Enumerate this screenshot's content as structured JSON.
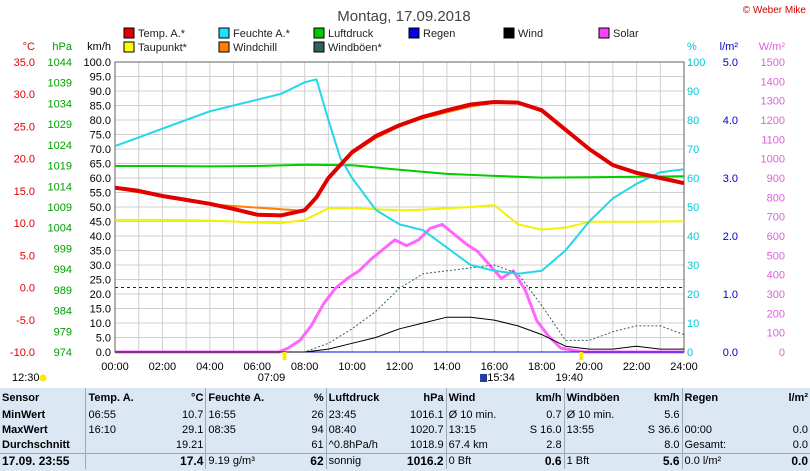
{
  "title": "Montag, 17.09.2018",
  "copyright": "© Weber Mike",
  "axes": {
    "temp": {
      "unit": "°C",
      "color": "#e00000",
      "ticks": [
        "35.0",
        "30.0",
        "25.0",
        "20.0",
        "15.0",
        "10.0",
        "5.0",
        "0.0",
        "-5.0",
        "-10.0"
      ],
      "min": -10,
      "max": 35
    },
    "pressure": {
      "unit": "hPa",
      "color": "#00a000",
      "ticks": [
        "1044",
        "1039",
        "1034",
        "1029",
        "1024",
        "1019",
        "1014",
        "1009",
        "1004",
        "999",
        "994",
        "989",
        "984",
        "979",
        "974"
      ],
      "min": 974,
      "max": 1044
    },
    "wind": {
      "unit": "km/h",
      "color": "#000000",
      "ticks": [
        "100.0",
        "95.0",
        "90.0",
        "85.0",
        "80.0",
        "75.0",
        "70.0",
        "65.0",
        "60.0",
        "55.0",
        "50.0",
        "45.0",
        "40.0",
        "35.0",
        "30.0",
        "25.0",
        "20.0",
        "15.0",
        "10.0",
        "5.0",
        "0.0"
      ],
      "min": 0,
      "max": 100
    },
    "humidity": {
      "unit": "%",
      "color": "#00c8d8",
      "ticks": [
        "100",
        "90",
        "80",
        "70",
        "60",
        "50",
        "40",
        "30",
        "20",
        "10",
        "0"
      ],
      "min": 0,
      "max": 100
    },
    "rain": {
      "unit": "l/m²",
      "color": "#0000c8",
      "ticks": [
        "5.0",
        "4.0",
        "3.0",
        "2.0",
        "1.0",
        "0.0"
      ],
      "min": 0,
      "max": 5
    },
    "solar": {
      "unit": "W/m²",
      "color": "#e060e0",
      "ticks": [
        "1500",
        "1400",
        "1300",
        "1200",
        "1100",
        "1000",
        "900",
        "800",
        "700",
        "600",
        "500",
        "400",
        "300",
        "200",
        "100",
        "0"
      ],
      "min": 0,
      "max": 1500
    },
    "x_ticks": [
      "00:00",
      "02:00",
      "04:00",
      "06:00",
      "08:00",
      "10:00",
      "12:00",
      "14:00",
      "16:00",
      "18:00",
      "20:00",
      "22:00",
      "24:00"
    ]
  },
  "legend": [
    {
      "label": "Temp. A.*",
      "color": "#e00000"
    },
    {
      "label": "Feuchte A.*",
      "color": "#20e0ff"
    },
    {
      "label": "Luftdruck",
      "color": "#00c800"
    },
    {
      "label": "Regen",
      "color": "#0000e0"
    },
    {
      "label": "Wind",
      "color": "#000000"
    },
    {
      "label": "Solar",
      "color": "#ff40ff"
    },
    {
      "label": "Taupunkt*",
      "color": "#ffff00"
    },
    {
      "label": "Windchill",
      "color": "#ff8000"
    },
    {
      "label": "Windböen*",
      "color": "#306060"
    }
  ],
  "events": {
    "sunrise": "07:09",
    "sunset": "19:40",
    "moonrise": "12:30",
    "midday": "15:34"
  },
  "chart_data": {
    "type": "line",
    "x_unit": "hour",
    "xlim": [
      0,
      24
    ],
    "series": [
      {
        "name": "Temp. A.*",
        "axis": "temp",
        "x": [
          0,
          1,
          2,
          3,
          4,
          5,
          6,
          7,
          8,
          8.5,
          9,
          10,
          11,
          12,
          13,
          14,
          15,
          16,
          17,
          18,
          19,
          20,
          21,
          22,
          23,
          24
        ],
        "y": [
          15.5,
          15.0,
          14.2,
          13.6,
          13.0,
          12.2,
          11.3,
          11.2,
          12.0,
          14.0,
          17.0,
          21.0,
          23.5,
          25.2,
          26.5,
          27.5,
          28.4,
          28.8,
          28.7,
          27.5,
          24.5,
          21.5,
          19.0,
          17.8,
          17.0,
          16.2
        ]
      },
      {
        "name": "Feuchte A.*",
        "axis": "humidity",
        "x": [
          0,
          1,
          2,
          3,
          4,
          5,
          6,
          7,
          7.5,
          8,
          8.5,
          9,
          9.5,
          10,
          11,
          12,
          13,
          14,
          15,
          16,
          17,
          18,
          19,
          20,
          21,
          22,
          23,
          24
        ],
        "y": [
          71,
          74,
          77,
          80,
          83,
          85,
          87,
          89,
          91,
          93,
          94,
          80,
          67,
          60,
          49,
          44,
          42,
          36,
          30,
          28,
          27,
          28,
          35,
          45,
          53,
          58,
          62,
          63
        ]
      },
      {
        "name": "Luftdruck",
        "axis": "pressure",
        "x": [
          0,
          2,
          4,
          6,
          8,
          10,
          12,
          14,
          16,
          18,
          20,
          22,
          24
        ],
        "y": [
          1018.9,
          1018.9,
          1018.8,
          1018.9,
          1019.2,
          1019.1,
          1018.0,
          1017.0,
          1016.5,
          1016.1,
          1016.2,
          1016.3,
          1016.4
        ]
      },
      {
        "name": "Taupunkt*",
        "axis": "temp",
        "x": [
          0,
          2,
          4,
          6,
          7,
          8,
          9,
          10,
          12,
          13,
          14,
          15,
          16,
          17,
          18,
          19,
          20,
          22,
          24
        ],
        "y": [
          10.5,
          10.5,
          10.4,
          10.1,
          10.0,
          10.5,
          12.3,
          12.3,
          12.0,
          12.1,
          12.3,
          12.5,
          12.8,
          9.8,
          9.0,
          9.3,
          10.2,
          10.2,
          10.3
        ]
      },
      {
        "name": "Windchill",
        "axis": "temp",
        "x": [
          0,
          4,
          8,
          8.5,
          9,
          10,
          11,
          12,
          13,
          14,
          15,
          16,
          17,
          18,
          19,
          20,
          21,
          22,
          24
        ],
        "y": [
          15.4,
          12.9,
          11.9,
          13.8,
          16.8,
          20.8,
          23.2,
          25.0,
          26.3,
          27.2,
          28.1,
          28.7,
          28.6,
          27.3,
          24.3,
          21.4,
          18.9,
          17.7,
          16.1
        ]
      },
      {
        "name": "Wind",
        "axis": "wind",
        "x": [
          0,
          8,
          9,
          10,
          11,
          12,
          13,
          14,
          15,
          16,
          17,
          18,
          19,
          20,
          21,
          22,
          23,
          24
        ],
        "y": [
          0,
          0,
          1,
          3,
          5,
          8,
          10,
          12,
          12,
          11,
          9,
          6,
          2,
          1,
          1,
          2,
          1,
          1
        ]
      },
      {
        "name": "Windböen*",
        "axis": "wind",
        "x": [
          0,
          8,
          9,
          10,
          11,
          12,
          13,
          14,
          15,
          16,
          17,
          18,
          19,
          20,
          21,
          22,
          23,
          24
        ],
        "y": [
          0,
          0,
          3,
          8,
          14,
          22,
          27,
          28,
          29,
          30,
          27,
          16,
          4,
          4,
          7,
          9,
          9,
          6
        ]
      },
      {
        "name": "Solar",
        "axis": "solar",
        "x": [
          0,
          6.9,
          7.3,
          7.8,
          8.3,
          8.8,
          9.3,
          9.8,
          10.3,
          10.8,
          11.3,
          11.8,
          12.3,
          12.8,
          13.3,
          13.8,
          14.3,
          14.8,
          15.3,
          15.8,
          16.3,
          16.8,
          17.3,
          17.8,
          18.3,
          18.8,
          19.3,
          19.8,
          24
        ],
        "y": [
          0,
          0,
          20,
          60,
          140,
          250,
          330,
          380,
          420,
          480,
          530,
          580,
          550,
          580,
          640,
          660,
          610,
          560,
          520,
          450,
          380,
          420,
          320,
          160,
          80,
          20,
          10,
          0,
          0
        ]
      },
      {
        "name": "Regen",
        "axis": "rain",
        "x": [
          0,
          24
        ],
        "y": [
          0,
          0
        ]
      }
    ]
  },
  "stats": {
    "headers": {
      "sensor": "Sensor",
      "temp": "Temp. A.",
      "temp_u": "°C",
      "hum": "Feuchte A.",
      "hum_u": "%",
      "press": "Luftdruck",
      "press_u": "hPa",
      "wind": "Wind",
      "wind_u": "km/h",
      "gust": "Windböen",
      "gust_u": "km/h",
      "rain": "Regen",
      "rain_u": "l/m²"
    },
    "min": {
      "label": "MinWert",
      "temp_t": "06:55",
      "temp_v": "10.7",
      "hum_t": "16:55",
      "hum_v": "26",
      "press_t": "23:45",
      "press_v": "1016.1",
      "wind_t": "Ø 10 min.",
      "wind_v": "0.7",
      "gust_t": "Ø 10 min.",
      "gust_v": "5.6",
      "rain_t": "",
      "rain_v": ""
    },
    "max": {
      "label": "MaxWert",
      "temp_t": "16:10",
      "temp_v": "29.1",
      "hum_t": "08:35",
      "hum_v": "94",
      "press_t": "08:40",
      "press_v": "1020.7",
      "wind_t": "13:15",
      "wind_d": "S",
      "wind_v": "16.0",
      "gust_t": "13:55",
      "gust_d": "S",
      "gust_v": "36.6",
      "rain_t": "00:00",
      "rain_v": "0.0"
    },
    "avg": {
      "label": "Durchschnitt",
      "temp_v": "19.21",
      "hum_v": "61",
      "press_t": "^0.8hPa/h",
      "press_v": "1018.9",
      "wind_t": "67.4 km",
      "wind_v": "2.8",
      "gust_v": "8.0",
      "rain_t": "Gesamt:",
      "rain_v": "0.0"
    },
    "current": {
      "label": "17.09. 23:55",
      "temp_v": "17.4",
      "hum_t": "9.19 g/m³",
      "hum_v": "62",
      "press_t": "sonnig",
      "press_v": "1016.2",
      "wind_t": "0 Bft",
      "wind_v": "0.6",
      "gust_t": "1 Bft",
      "gust_v": "5.6",
      "rain_t": "0.0 l/m²",
      "rain_v": "0.0"
    }
  }
}
